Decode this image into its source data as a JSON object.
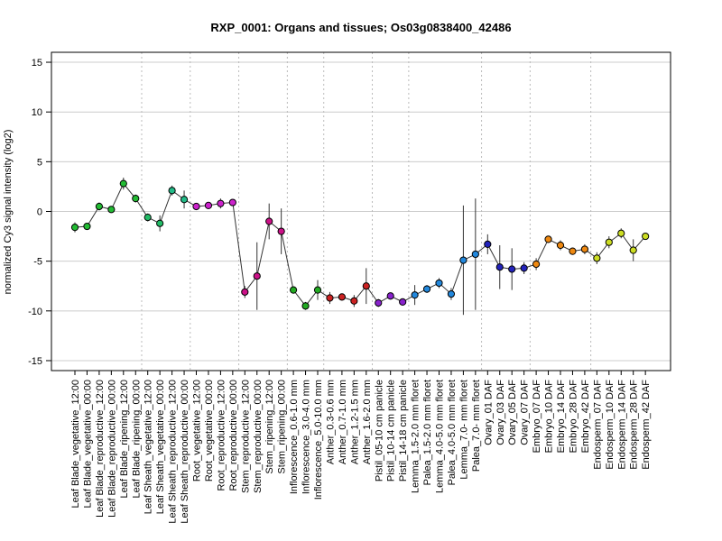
{
  "chart_data": {
    "type": "line",
    "title": "RXP_0001: Organs and tissues; Os03g0838400_42486",
    "xlabel": "",
    "ylabel": "normalized Cy3 signal intensity (log2)",
    "ylim": [
      -16,
      16
    ],
    "yticks": [
      -15,
      -10,
      -5,
      0,
      5,
      10,
      15
    ],
    "grid": true,
    "categories": [
      "Leaf Blade_vegetative_12:00",
      "Leaf Blade_vegetative_00:00",
      "Leaf Blade_reproductive_12:00",
      "Leaf Blade_reproductive_00:00",
      "Leaf Blade_ripening_12:00",
      "Leaf Blade_ripening_00:00",
      "Leaf Sheath_vegetative_12:00",
      "Leaf Sheath_vegetative_00:00",
      "Leaf Sheath_reproductive_12:00",
      "Leaf Sheath_reproductive_00:00",
      "Root_vegetative_12:00",
      "Root_vegetative_00:00",
      "Root_reproductive_12:00",
      "Root_reproductive_00:00",
      "Stem_reproductive_12:00",
      "Stem_reproductive_00:00",
      "Stem_ripening_12:00",
      "Stem_ripening_00:00",
      "Inflorescence_0.6-1.0 mm",
      "Inflorescence_3.0-4.0 mm",
      "Inflorescence_5.0-10.0 mm",
      "Anther_0.3-0.6 mm",
      "Anther_0.7-1.0 mm",
      "Anther_1.2-1.5 mm",
      "Anther_1.6-2.0 mm",
      "Pistil_05-10 cm panicle",
      "Pistil_10-14 cm panicle",
      "Pistil_14-18 cm panicle",
      "Lemma_1.5-2.0 mm floret",
      "Palea_1.5-2.0 mm floret",
      "Lemma_4.0-5.0 mm floret",
      "Palea_4.0-5.0 mm floret",
      "Lemma_7.0- mm floret",
      "Palea_7.0- mm floret",
      "Ovary_01 DAF",
      "Ovary_03 DAF",
      "Ovary_05 DAF",
      "Ovary_07 DAF",
      "Embryo_07 DAF",
      "Embryo_10 DAF",
      "Embryo_14 DAF",
      "Embryo_28 DAF",
      "Embryo_42 DAF",
      "Endosperm_07 DAF",
      "Endosperm_10 DAF",
      "Endosperm_14 DAF",
      "Endosperm_28 DAF",
      "Endosperm_42 DAF"
    ],
    "values": [
      -1.6,
      -1.5,
      0.5,
      0.2,
      2.8,
      1.3,
      -0.6,
      -1.2,
      2.1,
      1.2,
      0.5,
      0.6,
      0.8,
      0.9,
      -8.1,
      -6.5,
      -1.0,
      -2.0,
      -7.9,
      -9.5,
      -7.9,
      -8.7,
      -8.6,
      -9.0,
      -7.5,
      -9.2,
      -8.5,
      -9.1,
      -8.4,
      -7.8,
      -7.2,
      -8.3,
      -4.9,
      -4.3,
      -3.3,
      -5.6,
      -5.8,
      -5.7,
      -5.3,
      -2.8,
      -3.4,
      -4.0,
      -3.8,
      -4.7,
      -3.1,
      -2.2,
      -3.9,
      -2.5
    ],
    "errors": [
      0.5,
      0.3,
      0.4,
      0.3,
      0.6,
      0.4,
      0.4,
      0.8,
      0.5,
      0.9,
      0.3,
      0.2,
      0.5,
      0.3,
      0.6,
      3.4,
      1.8,
      2.3,
      0.3,
      0.4,
      1.0,
      0.6,
      0.3,
      0.6,
      1.8,
      0.4,
      0.3,
      0.3,
      1.0,
      0.4,
      0.5,
      0.6,
      5.5,
      5.6,
      1.0,
      2.2,
      2.1,
      0.6,
      0.6,
      0.3,
      0.5,
      0.3,
      0.5,
      0.6,
      0.6,
      0.5,
      1.1,
      0.3
    ],
    "group_colors": [
      "#22bb33",
      "#22bb66",
      "#22bb99",
      "#cc22cc",
      "#cc1188",
      "#22aa22",
      "#cc2222",
      "#8822cc",
      "#2288dd",
      "#2222bb",
      "#ee8811",
      "#ccdd22"
    ],
    "groups": [
      {
        "start": 0,
        "end": 5,
        "color_index": 0
      },
      {
        "start": 6,
        "end": 9,
        "color_index": 1
      },
      {
        "start": 10,
        "end": 13,
        "color_index": 3
      },
      {
        "start": 14,
        "end": 17,
        "color_index": 4
      },
      {
        "start": 18,
        "end": 20,
        "color_index": 5
      },
      {
        "start": 21,
        "end": 24,
        "color_index": 6
      },
      {
        "start": 25,
        "end": 27,
        "color_index": 7
      },
      {
        "start": 28,
        "end": 33,
        "color_index": 8
      },
      {
        "start": 34,
        "end": 37,
        "color_index": 9
      },
      {
        "start": 38,
        "end": 42,
        "color_index": 10
      },
      {
        "start": 43,
        "end": 47,
        "color_index": 11
      }
    ],
    "group_boundaries_after": [
      5,
      9,
      13,
      17,
      20,
      24,
      27,
      33,
      37,
      42
    ]
  }
}
